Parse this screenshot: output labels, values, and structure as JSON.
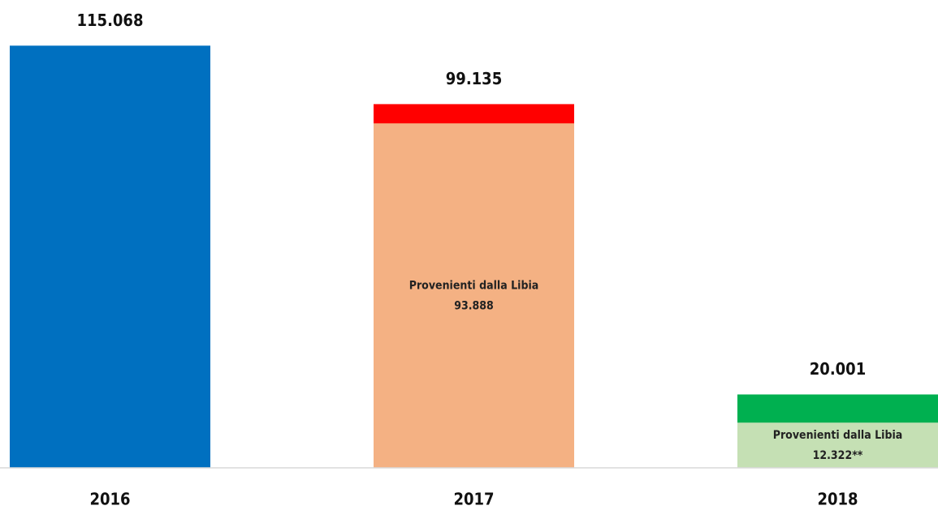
{
  "chart_data": {
    "type": "bar",
    "categories": [
      "2016",
      "2017",
      "2018"
    ],
    "values": [
      115068,
      99135,
      20001
    ],
    "value_labels": [
      "115.068",
      "99.135",
      "20.001"
    ],
    "colors": [
      "#0070c0",
      "#ff0000",
      "#00b050"
    ],
    "segments": {
      "name": "Provenienti dalla Libia",
      "values": [
        null,
        93888,
        12322
      ],
      "value_labels": [
        null,
        "93.888",
        "12.322**"
      ],
      "colors": [
        null,
        "#f4b183",
        "#c5e0b4"
      ]
    },
    "ylim": [
      0,
      120000
    ]
  }
}
